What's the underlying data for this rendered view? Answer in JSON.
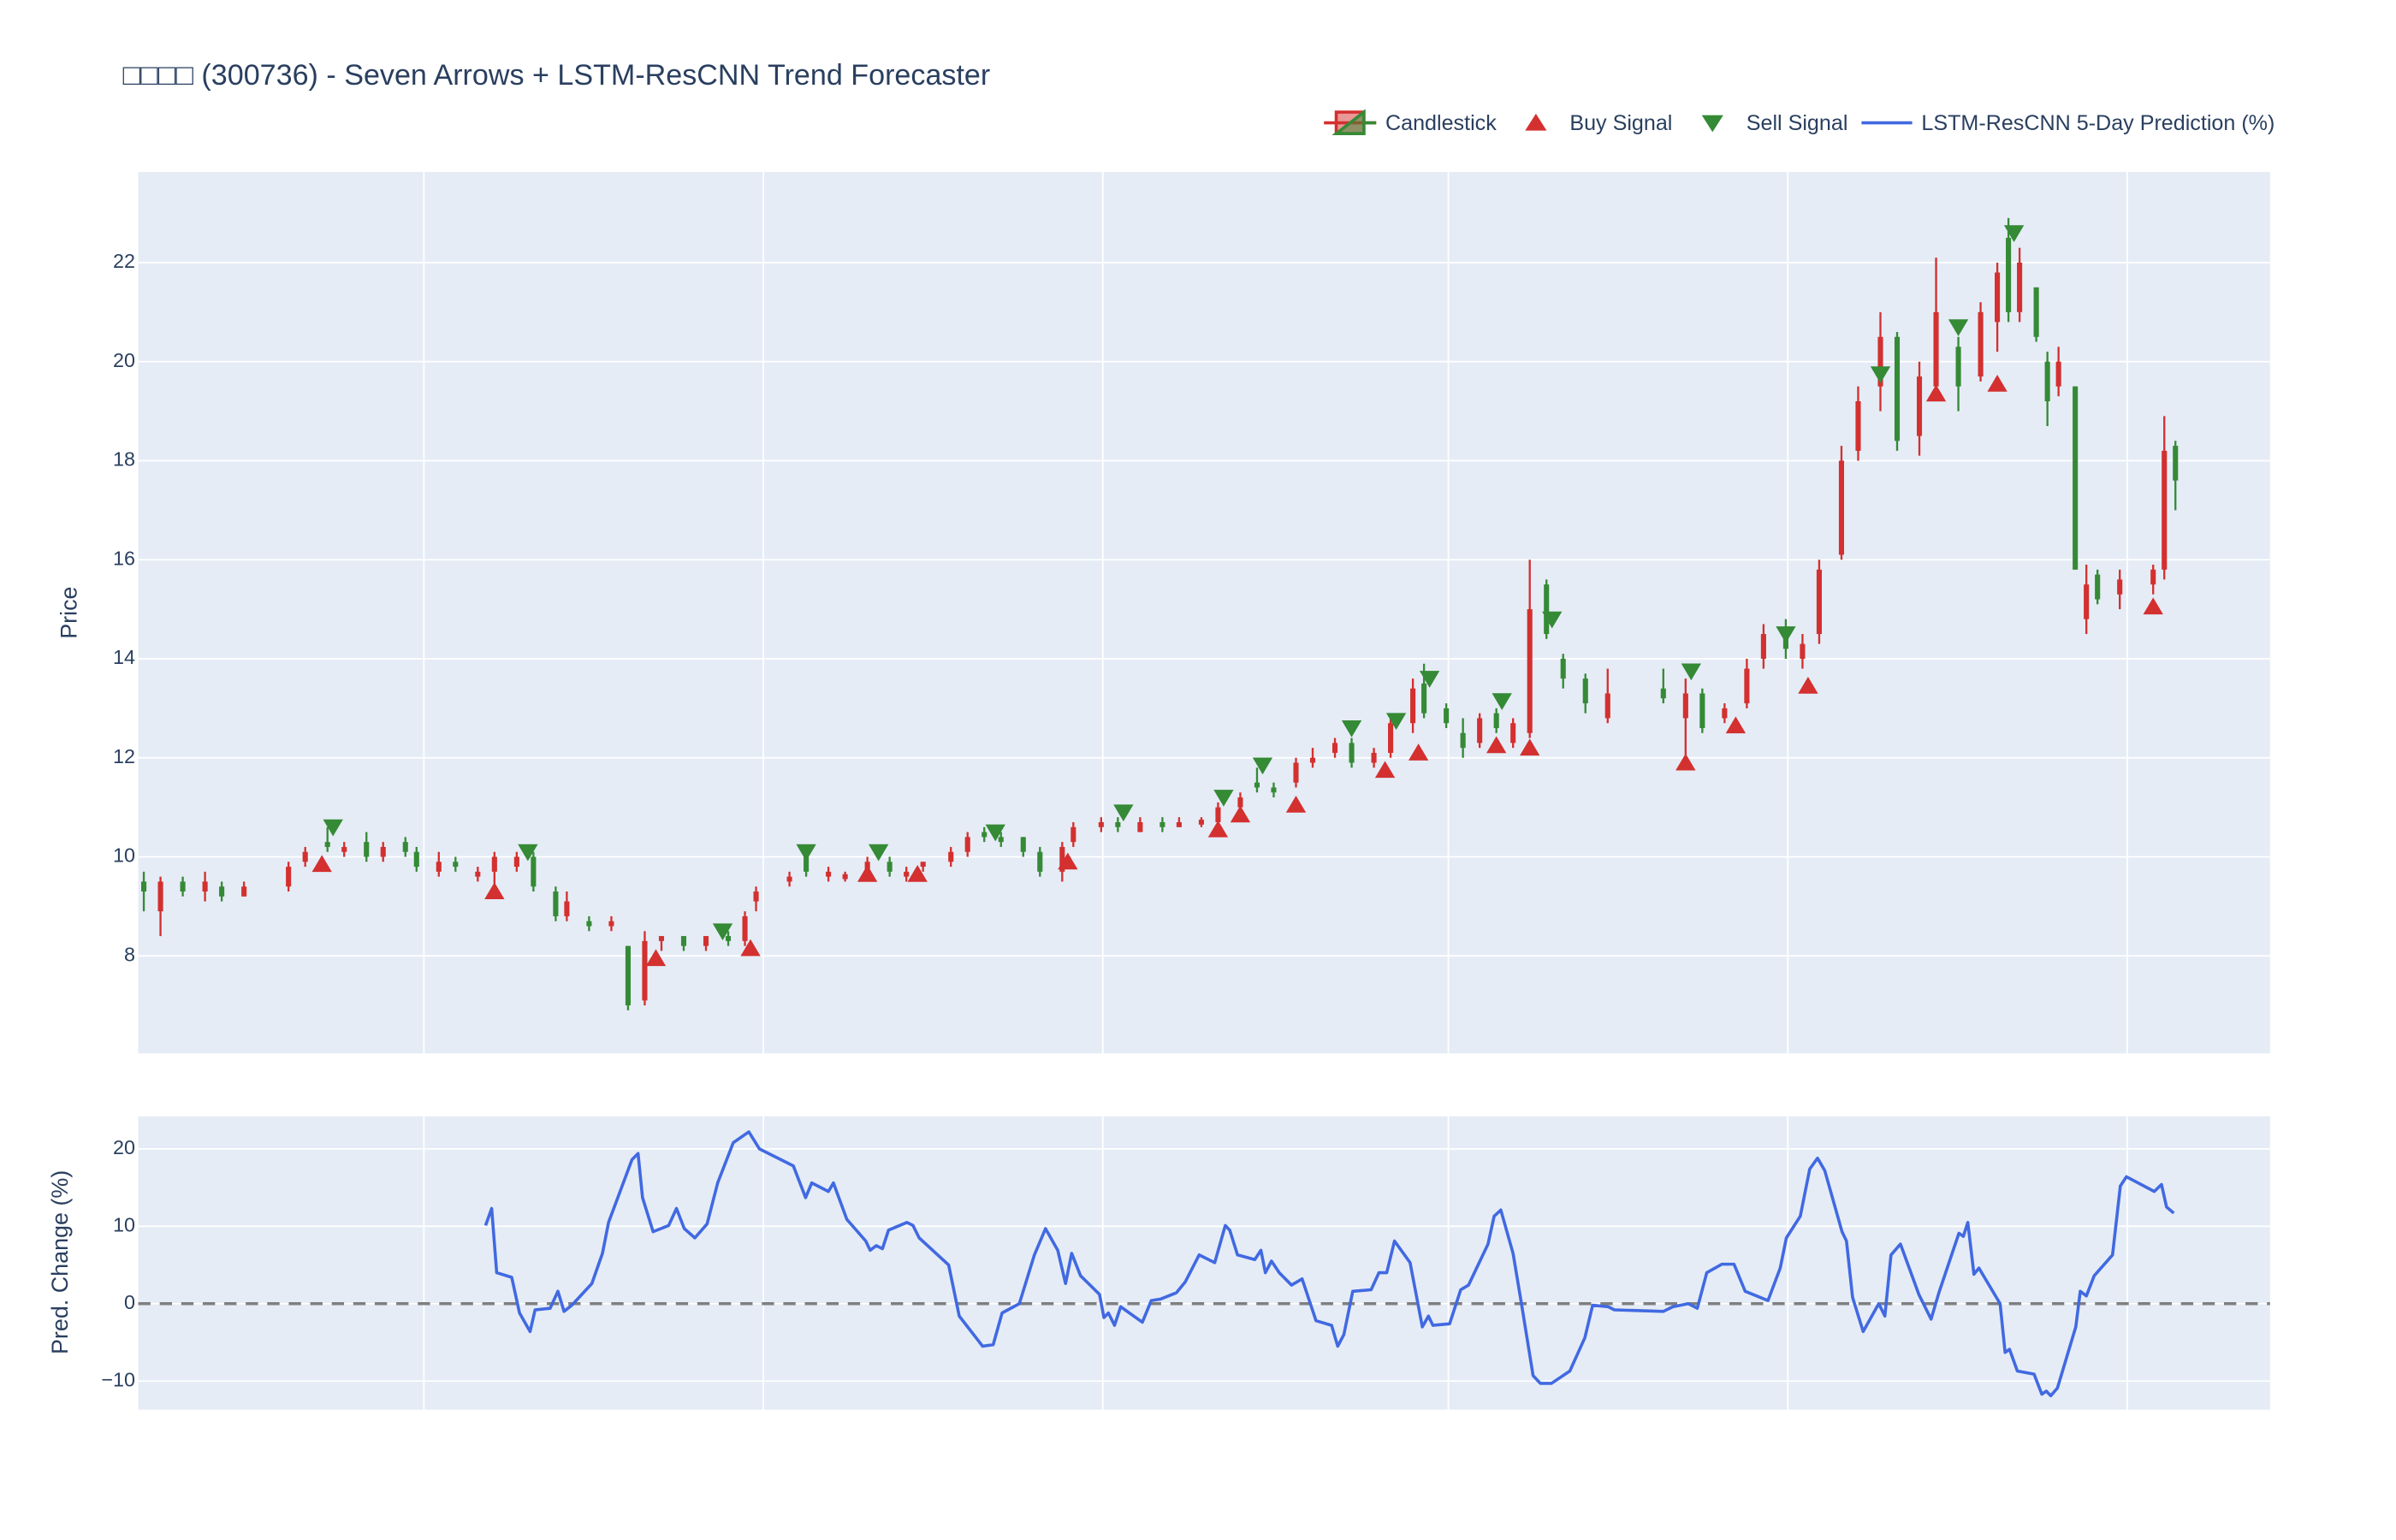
{
  "chart_data": [
    {
      "type": "candlestick",
      "title": "□□□□ (300736) - Seven Arrows + LSTM-ResCNN Trend Forecaster",
      "name": "Candlestick",
      "ylabel": "Price",
      "increasing_color": "#d3302f",
      "decreasing_color": "#358a35",
      "xlim": [
        0,
        383
      ],
      "ylim": [
        6.03,
        23.83
      ],
      "yticks": [
        8,
        10,
        12,
        14,
        16,
        18,
        20,
        22
      ],
      "grid": true,
      "legend": "top-right",
      "x": [
        1,
        4,
        8,
        12,
        15,
        19,
        27,
        30,
        34,
        37,
        41,
        44,
        48,
        50,
        54,
        57,
        61,
        64,
        68,
        71,
        75,
        77,
        81,
        85,
        88,
        91,
        94,
        98,
        102,
        106,
        109,
        111,
        117,
        120,
        124,
        127,
        131,
        135,
        138,
        141,
        146,
        149,
        152,
        155,
        159,
        162,
        166,
        168,
        173,
        176,
        180,
        184,
        187,
        191,
        194,
        198,
        201,
        204,
        208,
        211,
        215,
        218,
        222,
        225,
        229,
        231,
        235,
        238,
        241,
        244,
        247,
        250,
        253,
        256,
        260,
        264,
        274,
        278,
        281,
        285,
        289,
        292,
        296,
        299,
        302,
        306,
        309,
        313,
        316,
        320,
        323,
        327,
        331,
        334,
        336,
        338,
        341,
        343,
        345,
        348,
        350,
        352,
        356,
        362,
        364,
        366
      ],
      "open": [
        9.5,
        8.9,
        9.5,
        9.3,
        9.4,
        9.2,
        9.4,
        9.9,
        10.3,
        10.1,
        10.3,
        10.0,
        10.3,
        10.1,
        9.7,
        9.9,
        9.6,
        9.7,
        9.8,
        10.0,
        9.3,
        8.8,
        8.7,
        8.6,
        8.2,
        7.1,
        8.3,
        8.4,
        8.2,
        8.4,
        8.3,
        9.1,
        9.5,
        10.0,
        9.6,
        9.55,
        9.7,
        9.9,
        9.6,
        9.8,
        9.9,
        10.1,
        10.5,
        10.4,
        10.4,
        10.1,
        9.7,
        10.3,
        10.6,
        10.7,
        10.5,
        10.7,
        10.6,
        10.65,
        10.7,
        11.0,
        11.5,
        11.4,
        11.5,
        11.9,
        12.1,
        12.3,
        11.9,
        12.1,
        12.7,
        13.5,
        13.0,
        12.5,
        12.3,
        12.9,
        12.3,
        12.5,
        15.5,
        14.0,
        13.6,
        12.8,
        13.4,
        12.8,
        13.3,
        12.8,
        13.1,
        14.0,
        14.6,
        14.0,
        14.5,
        16.1,
        18.2,
        19.5,
        20.5,
        18.5,
        19.5,
        20.3,
        19.7,
        20.8,
        22.5,
        21.0,
        21.5,
        20.0,
        19.5,
        19.5,
        14.8,
        15.7,
        15.3,
        15.5,
        15.8,
        18.3
      ],
      "high": [
        9.7,
        9.6,
        9.6,
        9.7,
        9.5,
        9.5,
        9.9,
        10.2,
        10.6,
        10.3,
        10.5,
        10.3,
        10.4,
        10.2,
        10.1,
        10.0,
        9.8,
        10.1,
        10.1,
        10.1,
        9.4,
        9.3,
        8.8,
        8.8,
        8.2,
        8.5,
        8.4,
        8.4,
        8.4,
        8.5,
        8.9,
        9.4,
        9.7,
        10.1,
        9.8,
        9.7,
        10.0,
        10.0,
        9.8,
        9.9,
        10.2,
        10.5,
        10.6,
        10.5,
        10.4,
        10.2,
        10.3,
        10.7,
        10.8,
        10.8,
        10.8,
        10.8,
        10.8,
        10.8,
        11.1,
        11.3,
        11.8,
        11.5,
        12.0,
        12.2,
        12.4,
        12.4,
        12.2,
        12.9,
        13.6,
        13.9,
        13.1,
        12.8,
        12.9,
        13.0,
        12.8,
        16.0,
        15.6,
        14.1,
        13.7,
        13.8,
        13.8,
        13.6,
        13.4,
        13.1,
        14.0,
        14.7,
        14.8,
        14.5,
        16.0,
        18.3,
        19.5,
        21.0,
        20.6,
        20.0,
        22.1,
        20.5,
        21.2,
        22.0,
        22.9,
        22.3,
        21.5,
        20.2,
        20.3,
        19.5,
        15.9,
        15.8,
        15.8,
        15.9,
        18.9,
        18.4
      ],
      "low": [
        8.9,
        8.4,
        9.2,
        9.1,
        9.1,
        9.2,
        9.3,
        9.8,
        10.1,
        10.0,
        9.9,
        9.9,
        10.0,
        9.7,
        9.6,
        9.7,
        9.5,
        9.4,
        9.7,
        9.3,
        8.7,
        8.7,
        8.5,
        8.5,
        6.9,
        7.0,
        8.1,
        8.1,
        8.1,
        8.2,
        8.2,
        8.9,
        9.4,
        9.6,
        9.5,
        9.5,
        9.6,
        9.6,
        9.5,
        9.7,
        9.8,
        10.0,
        10.3,
        10.2,
        10.0,
        9.6,
        9.5,
        10.2,
        10.5,
        10.5,
        10.5,
        10.5,
        10.6,
        10.6,
        10.6,
        10.8,
        11.3,
        11.2,
        11.4,
        11.8,
        12.0,
        11.8,
        11.8,
        12.0,
        12.5,
        12.8,
        12.6,
        12.0,
        12.2,
        12.5,
        12.2,
        12.4,
        14.4,
        13.4,
        12.9,
        12.7,
        13.1,
        12.0,
        12.5,
        12.7,
        13.0,
        13.8,
        14.0,
        13.8,
        14.3,
        16.0,
        18.0,
        19.0,
        18.2,
        18.1,
        19.3,
        19.0,
        19.6,
        20.2,
        20.8,
        20.8,
        20.4,
        18.7,
        19.3,
        15.8,
        14.5,
        15.1,
        15.0,
        15.3,
        15.6,
        17.0
      ],
      "close": [
        9.3,
        9.5,
        9.3,
        9.5,
        9.2,
        9.4,
        9.8,
        10.1,
        10.2,
        10.2,
        10.0,
        10.2,
        10.1,
        9.8,
        9.9,
        9.8,
        9.7,
        10.0,
        10.0,
        9.4,
        8.8,
        9.1,
        8.6,
        8.7,
        7.0,
        8.3,
        8.4,
        8.2,
        8.4,
        8.3,
        8.8,
        9.3,
        9.6,
        9.7,
        9.7,
        9.65,
        9.9,
        9.7,
        9.7,
        9.9,
        10.1,
        10.4,
        10.4,
        10.3,
        10.1,
        9.7,
        10.2,
        10.6,
        10.7,
        10.6,
        10.7,
        10.6,
        10.7,
        10.75,
        11.0,
        11.2,
        11.4,
        11.3,
        11.9,
        12.0,
        12.3,
        11.9,
        12.1,
        12.7,
        13.4,
        12.9,
        12.7,
        12.2,
        12.8,
        12.6,
        12.7,
        15.0,
        14.5,
        13.6,
        13.1,
        13.3,
        13.2,
        13.3,
        12.6,
        13.0,
        13.8,
        14.5,
        14.2,
        14.3,
        15.8,
        18.0,
        19.2,
        20.5,
        18.4,
        19.7,
        21.0,
        19.5,
        21.0,
        21.8,
        21.0,
        22.0,
        20.5,
        19.2,
        20.0,
        15.8,
        15.5,
        15.2,
        15.6,
        15.8,
        18.2,
        17.6
      ],
      "signals": [
        {
          "name": "Buy Signal",
          "marker": "triangle-up",
          "color": "#d3302f",
          "x": [
            33,
            64,
            93,
            110,
            131,
            140,
            167,
            194,
            198,
            208,
            224,
            230,
            244,
            250,
            278,
            287,
            300,
            323,
            334,
            362
          ],
          "values": [
            9.85,
            9.3,
            7.95,
            8.15,
            9.65,
            9.65,
            9.9,
            10.55,
            10.85,
            11.05,
            11.75,
            12.1,
            12.25,
            12.2,
            11.9,
            12.65,
            13.45,
            19.35,
            19.55,
            15.05
          ]
        },
        {
          "name": "Sell Signal",
          "marker": "triangle-down",
          "color": "#358a35",
          "x": [
            35,
            70,
            105,
            120,
            133,
            154,
            177,
            195,
            202,
            218,
            226,
            232,
            245,
            254,
            279,
            296,
            313,
            327,
            337
          ],
          "values": [
            10.6,
            10.1,
            8.5,
            10.1,
            10.1,
            10.5,
            10.9,
            11.2,
            11.85,
            12.6,
            12.75,
            13.6,
            13.15,
            14.8,
            13.75,
            14.5,
            19.75,
            20.7,
            22.6
          ]
        }
      ]
    },
    {
      "type": "line",
      "ylabel": "Pred. Change (%)",
      "xlim": [
        0,
        383
      ],
      "ylim": [
        -13.7,
        24.2
      ],
      "yticks": [
        {
          "value": -10,
          "label": "−10"
        },
        0,
        10,
        20
      ],
      "grid": true,
      "hline": 0,
      "series": [
        {
          "name": "LSTM-ResCNN 5-Day Prediction (%)",
          "color": "#4169e1",
          "x": [
            62.4,
            63.5,
            64.4,
            67.1,
            68.5,
            70.4,
            71.3,
            74.0,
            75.4,
            76.5,
            77.9,
            81.5,
            83.4,
            84.5,
            88.7,
            89.8,
            90.6,
            92.5,
            95.3,
            96.7,
            98.1,
            100.0,
            102.2,
            104.1,
            106.9,
            109.7,
            111.6,
            117.7,
            119.9,
            121.0,
            124.0,
            124.9,
            127.3,
            130.7,
            131.5,
            132.6,
            133.7,
            134.8,
            138.1,
            139.2,
            140.3,
            145.6,
            147.5,
            151.7,
            153.6,
            155.2,
            158.3,
            161.0,
            163.0,
            165.2,
            166.6,
            167.7,
            169.3,
            172.7,
            173.5,
            174.3,
            175.4,
            176.5,
            180.4,
            182.0,
            183.7,
            186.5,
            188.1,
            190.6,
            193.4,
            195.3,
            196.1,
            197.5,
            200.6,
            201.7,
            202.5,
            203.6,
            205.0,
            207.2,
            209.1,
            211.6,
            214.4,
            215.5,
            216.6,
            218.2,
            221.5,
            222.9,
            224.3,
            225.7,
            228.5,
            230.7,
            231.8,
            232.6,
            235.6,
            237.6,
            239.0,
            242.5,
            243.6,
            244.8,
            247.0,
            248.6,
            250.6,
            251.9,
            253.9,
            257.2,
            259.9,
            261.3,
            264.1,
            265.2,
            274.0,
            275.7,
            278.5,
            280.1,
            281.8,
            284.5,
            286.7,
            288.7,
            292.8,
            295.0,
            296.1,
            298.6,
            300.3,
            301.7,
            303.0,
            306.1,
            306.9,
            308.0,
            309.9,
            312.7,
            313.8,
            314.9,
            316.6,
            319.9,
            322.1,
            323.5,
            327.1,
            327.9,
            328.7,
            329.8,
            330.7,
            334.5,
            335.4,
            336.2,
            337.6,
            340.6,
            342.0,
            342.8,
            343.6,
            344.8,
            348.1,
            348.9,
            350.0,
            351.4,
            354.7,
            356.1,
            357.2,
            362.2,
            363.5,
            364.4,
            365.7
          ],
          "values": [
            10.1,
            12.3,
            4.0,
            3.4,
            -1.2,
            -3.6,
            -0.8,
            -0.6,
            1.6,
            -1.0,
            -0.2,
            2.6,
            6.5,
            10.5,
            18.6,
            19.4,
            13.7,
            9.3,
            10.1,
            12.3,
            9.7,
            8.5,
            10.3,
            15.6,
            20.8,
            22.2,
            20.0,
            17.8,
            13.7,
            15.6,
            14.5,
            15.6,
            10.9,
            8.1,
            6.9,
            7.5,
            7.1,
            9.5,
            10.5,
            10.1,
            8.5,
            5.0,
            -1.6,
            -5.5,
            -5.3,
            -1.2,
            0.0,
            6.3,
            9.7,
            6.9,
            2.6,
            6.5,
            3.6,
            1.2,
            -1.8,
            -1.2,
            -2.8,
            -0.4,
            -2.4,
            0.4,
            0.6,
            1.4,
            2.8,
            6.3,
            5.3,
            10.1,
            9.5,
            6.3,
            5.7,
            6.9,
            4.0,
            5.5,
            4.0,
            2.4,
            3.2,
            -2.2,
            -2.8,
            -5.5,
            -4.0,
            1.6,
            1.8,
            4.0,
            4.0,
            8.1,
            5.3,
            -3.0,
            -1.6,
            -2.8,
            -2.6,
            1.8,
            2.4,
            7.7,
            11.3,
            12.1,
            6.5,
            -0.4,
            -9.3,
            -10.3,
            -10.3,
            -8.7,
            -4.4,
            -0.2,
            -0.4,
            -0.8,
            -1.0,
            -0.4,
            0.0,
            -0.6,
            4.0,
            5.1,
            5.1,
            1.6,
            0.4,
            4.6,
            8.5,
            11.3,
            17.4,
            18.8,
            17.2,
            9.3,
            8.1,
            0.8,
            -3.6,
            0.0,
            -1.6,
            6.3,
            7.7,
            1.2,
            -2.0,
            1.4,
            9.1,
            8.7,
            10.5,
            3.8,
            4.6,
            0.0,
            -6.3,
            -5.9,
            -8.7,
            -9.1,
            -11.7,
            -11.3,
            -11.9,
            -10.9,
            -3.0,
            1.6,
            1.0,
            3.6,
            6.3,
            15.2,
            16.4,
            14.5,
            15.4,
            12.5,
            11.7
          ]
        }
      ]
    }
  ]
}
